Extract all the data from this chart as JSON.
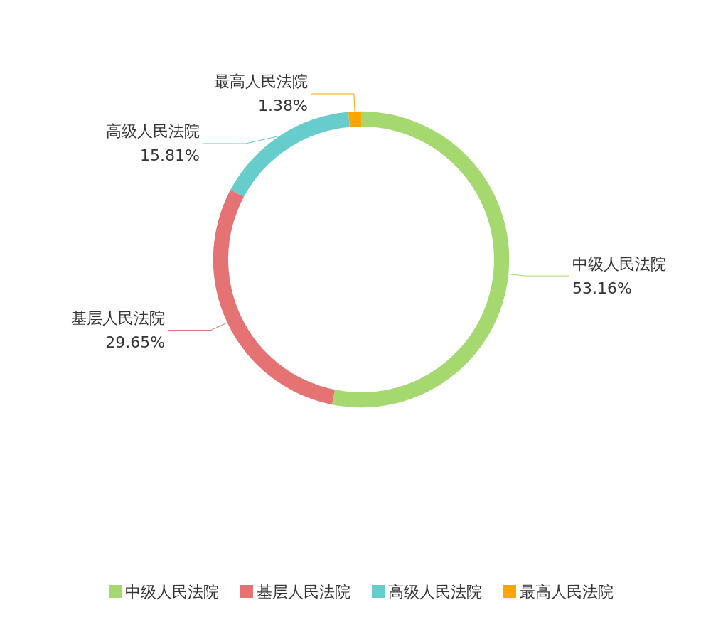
{
  "chart_data": {
    "type": "donut",
    "categories": [
      "中级人民法院",
      "基层人民法院",
      "高级人民法院",
      "最高人民法院"
    ],
    "values": [
      53.16,
      29.65,
      15.81,
      1.38
    ],
    "colors": [
      "#a5d86e",
      "#e57373",
      "#66cccc",
      "#ffa500"
    ],
    "value_labels": [
      "53.16%",
      "29.65%",
      "15.81%",
      "1.38%"
    ],
    "legend": "bottom"
  }
}
